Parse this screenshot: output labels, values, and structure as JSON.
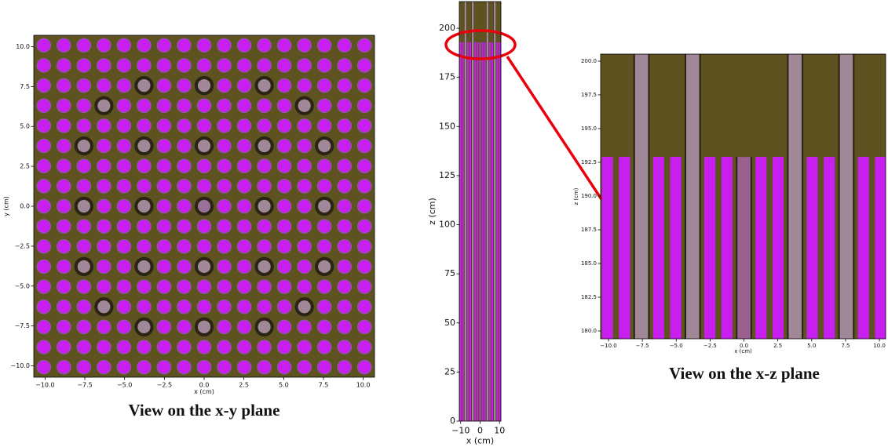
{
  "panels": [
    {
      "xlabel": "x (cm)",
      "ylabel": "y (cm)",
      "xlim": [
        -10.71,
        10.71
      ],
      "ylim": [
        -10.71,
        10.71
      ],
      "xticks": [
        {
          "value": -10,
          "label": "−10.0"
        },
        {
          "value": -7.5,
          "label": "−7.5"
        },
        {
          "value": -5,
          "label": "−5.0"
        },
        {
          "value": -2.5,
          "label": "−2.5"
        },
        {
          "value": 0,
          "label": "0.0"
        },
        {
          "value": 2.5,
          "label": "2.5"
        },
        {
          "value": 5,
          "label": "5.0"
        },
        {
          "value": 7.5,
          "label": "7.5"
        },
        {
          "value": 10,
          "label": "10.0"
        }
      ],
      "yticks": [
        {
          "value": -10,
          "label": "−10.0"
        },
        {
          "value": -7.5,
          "label": "−7.5"
        },
        {
          "value": -5,
          "label": "−5.0"
        },
        {
          "value": -2.5,
          "label": "−2.5"
        },
        {
          "value": 0,
          "label": "0.0"
        },
        {
          "value": 2.5,
          "label": "2.5"
        },
        {
          "value": 5,
          "label": "5.0"
        },
        {
          "value": 7.5,
          "label": "7.5"
        },
        {
          "value": 10,
          "label": "10.0"
        }
      ],
      "caption": "View on the x-y plane"
    },
    {
      "xlabel": "x (cm)",
      "ylabel": "z (cm)",
      "xlim": [
        -10.71,
        10.71
      ],
      "ylim": [
        0,
        213.6
      ],
      "xticks": [
        {
          "value": -10,
          "label": "−10"
        },
        0,
        10
      ],
      "yticks": [
        0,
        25,
        50,
        75,
        100,
        125,
        150,
        175,
        200
      ]
    },
    {
      "xlabel": "x (cm)",
      "ylabel": "z (cm)",
      "xlim": [
        -10.58,
        10.46
      ],
      "ylim": [
        179.42,
        200.52
      ],
      "xticks": [
        {
          "value": -10,
          "label": "−10.0"
        },
        {
          "value": -7.5,
          "label": "−7.5"
        },
        {
          "value": -5,
          "label": "−5.0"
        },
        {
          "value": -2.5,
          "label": "−2.5"
        },
        {
          "value": 0,
          "label": "0.0"
        },
        {
          "value": 2.5,
          "label": "2.5"
        },
        {
          "value": 5,
          "label": "5.0"
        },
        {
          "value": 7.5,
          "label": "7.5"
        },
        {
          "value": 10,
          "label": "10.0"
        }
      ],
      "yticks": [
        {
          "value": 180,
          "label": "180.0"
        },
        {
          "value": 182.5,
          "label": "182.5"
        },
        {
          "value": 185,
          "label": "185.0"
        },
        {
          "value": 187.5,
          "label": "187.5"
        },
        {
          "value": 190,
          "label": "190.0"
        },
        {
          "value": 192.5,
          "label": "192.5"
        },
        {
          "value": 195,
          "label": "195.0"
        },
        {
          "value": 197.5,
          "label": "197.5"
        },
        {
          "value": 200,
          "label": "200.0"
        }
      ],
      "caption": "View on the x-z plane"
    }
  ]
}
